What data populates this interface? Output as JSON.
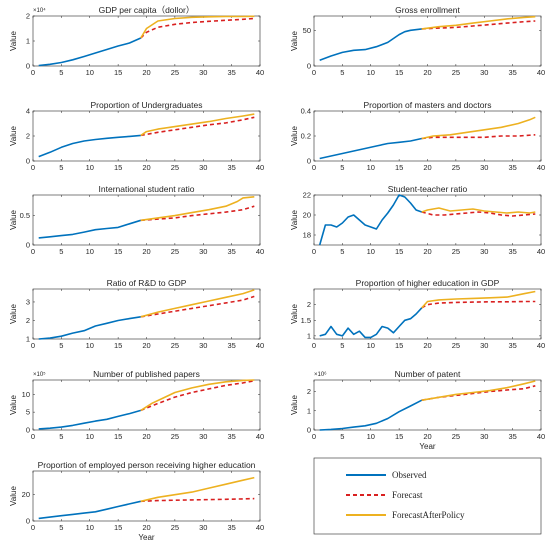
{
  "chart_data": [
    {
      "type": "line",
      "title": "GDP per capita（dollor）",
      "xlabel": "",
      "ylabel": "Value",
      "multiplier": "×10⁴",
      "xlim": [
        0,
        40
      ],
      "ylim": [
        0,
        2
      ],
      "xticks": [
        0,
        5,
        10,
        15,
        20,
        25,
        30,
        35,
        40
      ],
      "yticks": [
        0,
        1,
        2
      ],
      "series": [
        {
          "name": "Observed",
          "x": [
            1,
            3,
            5,
            7,
            9,
            11,
            13,
            15,
            17,
            19
          ],
          "y": [
            0.02,
            0.07,
            0.14,
            0.25,
            0.38,
            0.52,
            0.66,
            0.8,
            0.92,
            1.12
          ]
        },
        {
          "name": "Forecast",
          "x": [
            19,
            20,
            22,
            25,
            28,
            31,
            34,
            37,
            39
          ],
          "y": [
            1.12,
            1.35,
            1.55,
            1.67,
            1.74,
            1.79,
            1.83,
            1.87,
            1.9
          ]
        },
        {
          "name": "ForecastAfterPolicy",
          "x": [
            19,
            20,
            22,
            25,
            28,
            31,
            34,
            37,
            39
          ],
          "y": [
            1.12,
            1.5,
            1.8,
            1.9,
            1.95,
            1.97,
            1.98,
            1.98,
            1.99
          ]
        }
      ]
    },
    {
      "type": "line",
      "title": "Gross enrollment",
      "xlabel": "",
      "ylabel": "Value",
      "multiplier": "",
      "xlim": [
        0,
        40
      ],
      "ylim": [
        0,
        70
      ],
      "xticks": [
        0,
        5,
        10,
        15,
        20,
        25,
        30,
        35,
        40
      ],
      "yticks": [
        0,
        50
      ],
      "series": [
        {
          "name": "Observed",
          "x": [
            1,
            3,
            5,
            7,
            9,
            11,
            13,
            15,
            16,
            17,
            19
          ],
          "y": [
            8,
            14,
            19,
            22,
            23,
            27,
            33,
            44,
            48,
            50,
            52
          ]
        },
        {
          "name": "Forecast",
          "x": [
            19,
            22,
            25,
            28,
            31,
            34,
            37,
            39
          ],
          "y": [
            52,
            53,
            54,
            56,
            58,
            60,
            62,
            63
          ]
        },
        {
          "name": "ForecastAfterPolicy",
          "x": [
            19,
            22,
            25,
            28,
            31,
            34,
            37,
            39
          ],
          "y": [
            52,
            55,
            57,
            60,
            63,
            66,
            68,
            69
          ]
        }
      ]
    },
    {
      "type": "line",
      "title": "Proportion of Undergraduates",
      "xlabel": "",
      "ylabel": "Value",
      "multiplier": "",
      "xlim": [
        0,
        40
      ],
      "ylim": [
        0,
        4
      ],
      "xticks": [
        0,
        5,
        10,
        15,
        20,
        25,
        30,
        35,
        40
      ],
      "yticks": [
        0,
        2,
        4
      ],
      "series": [
        {
          "name": "Observed",
          "x": [
            1,
            3,
            5,
            7,
            9,
            11,
            13,
            15,
            17,
            19
          ],
          "y": [
            0.35,
            0.7,
            1.1,
            1.4,
            1.6,
            1.72,
            1.82,
            1.9,
            1.97,
            2.05
          ]
        },
        {
          "name": "Forecast",
          "x": [
            19,
            22,
            25,
            28,
            31,
            34,
            37,
            39
          ],
          "y": [
            2.05,
            2.3,
            2.5,
            2.7,
            2.9,
            3.05,
            3.3,
            3.5
          ]
        },
        {
          "name": "ForecastAfterPolicy",
          "x": [
            19,
            20,
            22,
            25,
            28,
            31,
            34,
            37,
            39
          ],
          "y": [
            2.05,
            2.35,
            2.55,
            2.75,
            2.95,
            3.15,
            3.4,
            3.6,
            3.75
          ]
        }
      ]
    },
    {
      "type": "line",
      "title": "Proportion of masters and doctors",
      "xlabel": "",
      "ylabel": "Value",
      "multiplier": "",
      "xlim": [
        0,
        40
      ],
      "ylim": [
        0,
        0.4
      ],
      "xticks": [
        0,
        5,
        10,
        15,
        20,
        25,
        30,
        35,
        40
      ],
      "yticks": [
        0,
        0.2,
        0.4
      ],
      "series": [
        {
          "name": "Observed",
          "x": [
            1,
            3,
            5,
            7,
            9,
            11,
            13,
            15,
            17,
            19
          ],
          "y": [
            0.02,
            0.04,
            0.06,
            0.08,
            0.1,
            0.12,
            0.14,
            0.15,
            0.16,
            0.18
          ]
        },
        {
          "name": "Forecast",
          "x": [
            19,
            21,
            24,
            27,
            30,
            33,
            36,
            39
          ],
          "y": [
            0.18,
            0.19,
            0.19,
            0.19,
            0.19,
            0.2,
            0.2,
            0.21
          ]
        },
        {
          "name": "ForecastAfterPolicy",
          "x": [
            19,
            21,
            24,
            27,
            30,
            33,
            36,
            38,
            39
          ],
          "y": [
            0.18,
            0.2,
            0.21,
            0.23,
            0.25,
            0.27,
            0.3,
            0.33,
            0.35
          ]
        }
      ]
    },
    {
      "type": "line",
      "title": "International student ratio",
      "xlabel": "",
      "ylabel": "Value",
      "multiplier": "",
      "xlim": [
        0,
        40
      ],
      "ylim": [
        0,
        0.85
      ],
      "xticks": [
        0,
        5,
        10,
        15,
        20,
        25,
        30,
        35,
        40
      ],
      "yticks": [
        0,
        0.5
      ],
      "series": [
        {
          "name": "Observed",
          "x": [
            1,
            3,
            5,
            7,
            9,
            11,
            13,
            15,
            17,
            19
          ],
          "y": [
            0.12,
            0.14,
            0.16,
            0.18,
            0.22,
            0.26,
            0.28,
            0.3,
            0.36,
            0.42
          ]
        },
        {
          "name": "Forecast",
          "x": [
            19,
            22,
            25,
            28,
            31,
            34,
            37,
            39
          ],
          "y": [
            0.42,
            0.44,
            0.46,
            0.5,
            0.53,
            0.56,
            0.6,
            0.66
          ]
        },
        {
          "name": "ForecastAfterPolicy",
          "x": [
            19,
            22,
            25,
            28,
            31,
            34,
            36,
            37,
            39
          ],
          "y": [
            0.42,
            0.46,
            0.5,
            0.55,
            0.6,
            0.66,
            0.74,
            0.8,
            0.82
          ]
        }
      ]
    },
    {
      "type": "line",
      "title": "Student-teacher ratio",
      "xlabel": "",
      "ylabel": "Value",
      "multiplier": "",
      "xlim": [
        0,
        40
      ],
      "ylim": [
        17,
        22
      ],
      "xticks": [
        0,
        5,
        10,
        15,
        20,
        25,
        30,
        35,
        40
      ],
      "yticks": [
        18,
        20,
        22
      ],
      "series": [
        {
          "name": "Observed",
          "x": [
            1,
            2,
            3,
            4,
            5,
            6,
            7,
            8,
            9,
            10,
            11,
            12,
            13,
            14,
            15,
            16,
            17,
            18,
            19
          ],
          "y": [
            17.0,
            19.0,
            19.0,
            18.8,
            19.2,
            19.8,
            20.0,
            19.5,
            19.0,
            18.8,
            18.6,
            19.5,
            20.2,
            21.0,
            22.0,
            21.8,
            21.2,
            20.5,
            20.3
          ]
        },
        {
          "name": "Forecast",
          "x": [
            19,
            21,
            23,
            25,
            27,
            29,
            31,
            33,
            35,
            37,
            39
          ],
          "y": [
            20.3,
            20.0,
            20.0,
            20.1,
            20.2,
            20.3,
            20.2,
            20.0,
            19.9,
            20.0,
            20.1
          ]
        },
        {
          "name": "ForecastAfterPolicy",
          "x": [
            19,
            20,
            22,
            24,
            26,
            28,
            30,
            32,
            34,
            36,
            38,
            39
          ],
          "y": [
            20.3,
            20.5,
            20.7,
            20.4,
            20.5,
            20.6,
            20.4,
            20.3,
            20.2,
            20.3,
            20.2,
            20.3
          ]
        }
      ]
    },
    {
      "type": "line",
      "title": "Ratio of R&D to GDP",
      "xlabel": "",
      "ylabel": "Value",
      "multiplier": "",
      "xlim": [
        0,
        40
      ],
      "ylim": [
        1,
        3.7
      ],
      "xticks": [
        0,
        5,
        10,
        15,
        20,
        25,
        30,
        35,
        40
      ],
      "yticks": [
        1,
        2,
        3
      ],
      "series": [
        {
          "name": "Observed",
          "x": [
            1,
            3,
            5,
            7,
            9,
            11,
            13,
            15,
            17,
            19
          ],
          "y": [
            1.0,
            1.05,
            1.15,
            1.32,
            1.45,
            1.7,
            1.85,
            2.0,
            2.1,
            2.2
          ]
        },
        {
          "name": "Forecast",
          "x": [
            19,
            22,
            25,
            28,
            31,
            34,
            37,
            39
          ],
          "y": [
            2.2,
            2.35,
            2.5,
            2.65,
            2.8,
            2.95,
            3.1,
            3.3
          ]
        },
        {
          "name": "ForecastAfterPolicy",
          "x": [
            19,
            22,
            25,
            28,
            31,
            34,
            37,
            39
          ],
          "y": [
            2.2,
            2.45,
            2.65,
            2.85,
            3.05,
            3.25,
            3.45,
            3.65
          ]
        }
      ]
    },
    {
      "type": "line",
      "title": "Proportion of higher education in GDP",
      "xlabel": "",
      "ylabel": "Value",
      "multiplier": "",
      "xlim": [
        0,
        40
      ],
      "ylim": [
        0.9,
        2.5
      ],
      "xticks": [
        0,
        5,
        10,
        15,
        20,
        25,
        30,
        35,
        40
      ],
      "yticks": [
        1,
        1.5,
        2
      ],
      "series": [
        {
          "name": "Observed",
          "x": [
            1,
            2,
            3,
            4,
            5,
            6,
            7,
            8,
            9,
            10,
            11,
            12,
            13,
            14,
            15,
            16,
            17,
            18,
            19
          ],
          "y": [
            1.0,
            1.05,
            1.3,
            1.05,
            1.0,
            1.25,
            1.05,
            1.15,
            0.95,
            0.95,
            1.05,
            1.3,
            1.25,
            1.1,
            1.3,
            1.5,
            1.55,
            1.7,
            1.9
          ]
        },
        {
          "name": "Forecast",
          "x": [
            19,
            20,
            22,
            25,
            28,
            31,
            34,
            37,
            39
          ],
          "y": [
            1.9,
            2.0,
            2.05,
            2.07,
            2.08,
            2.09,
            2.09,
            2.1,
            2.1
          ]
        },
        {
          "name": "ForecastAfterPolicy",
          "x": [
            19,
            20,
            22,
            25,
            28,
            31,
            34,
            37,
            39
          ],
          "y": [
            1.9,
            2.1,
            2.15,
            2.18,
            2.2,
            2.22,
            2.24,
            2.35,
            2.42
          ]
        }
      ]
    },
    {
      "type": "line",
      "title": "Number of published papers",
      "xlabel": "",
      "ylabel": "Value",
      "multiplier": "×10⁵",
      "xlim": [
        0,
        40
      ],
      "ylim": [
        0,
        14
      ],
      "xticks": [
        0,
        5,
        10,
        15,
        20,
        25,
        30,
        35,
        40
      ],
      "yticks": [
        0,
        5,
        10
      ],
      "series": [
        {
          "name": "Observed",
          "x": [
            1,
            3,
            5,
            7,
            9,
            11,
            13,
            15,
            17,
            19
          ],
          "y": [
            0.3,
            0.5,
            0.8,
            1.3,
            1.9,
            2.5,
            3.0,
            3.8,
            4.6,
            5.5
          ]
        },
        {
          "name": "Forecast",
          "x": [
            19,
            21,
            23,
            25,
            28,
            31,
            34,
            37,
            39
          ],
          "y": [
            5.5,
            6.8,
            8.0,
            9.2,
            10.5,
            11.5,
            12.5,
            13.2,
            13.8
          ]
        },
        {
          "name": "ForecastAfterPolicy",
          "x": [
            19,
            21,
            23,
            25,
            28,
            31,
            34,
            37,
            39
          ],
          "y": [
            5.5,
            7.5,
            9.0,
            10.5,
            11.8,
            12.8,
            13.5,
            13.9,
            14.0
          ]
        }
      ]
    },
    {
      "type": "line",
      "title": "Number of patent",
      "xlabel": "",
      "ylabel": "Value",
      "multiplier": "×10⁶",
      "xlim": [
        0,
        40
      ],
      "ylim": [
        0,
        2.6
      ],
      "xticks": [
        0,
        5,
        10,
        15,
        20,
        25,
        30,
        35,
        40
      ],
      "yticks": [
        0,
        1,
        2
      ],
      "series": [
        {
          "name": "Observed",
          "x": [
            1,
            3,
            5,
            7,
            9,
            11,
            13,
            15,
            17,
            19
          ],
          "y": [
            0.0,
            0.03,
            0.08,
            0.15,
            0.22,
            0.35,
            0.6,
            0.95,
            1.25,
            1.55
          ]
        },
        {
          "name": "Forecast",
          "x": [
            19,
            22,
            25,
            28,
            31,
            34,
            37,
            39
          ],
          "y": [
            1.55,
            1.7,
            1.8,
            1.9,
            2.0,
            2.08,
            2.15,
            2.3
          ]
        },
        {
          "name": "ForecastAfterPolicy",
          "x": [
            19,
            22,
            25,
            28,
            31,
            34,
            37,
            39
          ],
          "y": [
            1.55,
            1.7,
            1.85,
            1.95,
            2.05,
            2.2,
            2.4,
            2.55
          ]
        }
      ]
    },
    {
      "type": "line",
      "title": "Proportion of employed person receiving higher education",
      "xlabel": "Year",
      "ylabel": "Value",
      "multiplier": "",
      "xlim": [
        0,
        40
      ],
      "ylim": [
        0,
        38
      ],
      "xticks": [
        0,
        5,
        10,
        15,
        20,
        25,
        30,
        35,
        40
      ],
      "yticks": [
        0,
        20
      ],
      "series": [
        {
          "name": "Observed",
          "x": [
            1,
            3,
            5,
            7,
            9,
            11,
            13,
            15,
            17,
            19
          ],
          "y": [
            2,
            3,
            4,
            5,
            6,
            7,
            9,
            11,
            13,
            15
          ]
        },
        {
          "name": "Forecast",
          "x": [
            19,
            22,
            25,
            28,
            31,
            34,
            37,
            39
          ],
          "y": [
            15,
            15.5,
            15.8,
            16,
            16.3,
            16.5,
            16.8,
            17
          ]
        },
        {
          "name": "ForecastAfterPolicy",
          "x": [
            19,
            22,
            25,
            28,
            31,
            34,
            37,
            39
          ],
          "y": [
            15,
            18,
            20,
            22,
            25,
            28,
            31,
            33
          ]
        }
      ]
    }
  ],
  "legend": {
    "labels": [
      "Observed",
      "Forecast",
      "ForecastAfterPolicy"
    ]
  },
  "style": {
    "observed_color": "#0072BD",
    "forecast_color": "#D92020",
    "policy_color": "#EDB120"
  }
}
